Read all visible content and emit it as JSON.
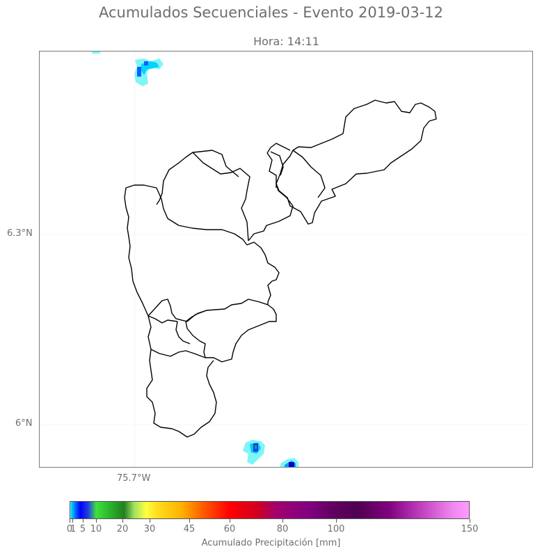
{
  "title": "Acumulados Secuenciales - Evento 2019-03-12",
  "subtitle": "Hora: 14:11",
  "map": {
    "lat_labels": [
      "6.3°N",
      "6°N"
    ],
    "lon_labels": [
      "75.7°W"
    ]
  },
  "colorbar": {
    "label": "Acumulado Precipitación [mm]",
    "ticks": [
      "0",
      "1",
      "5",
      "10",
      "20",
      "30",
      "45",
      "60",
      "80",
      "100",
      "150"
    ],
    "tick_values": [
      0,
      1,
      5,
      10,
      20,
      30,
      45,
      60,
      80,
      100,
      150
    ],
    "max": 150
  }
}
